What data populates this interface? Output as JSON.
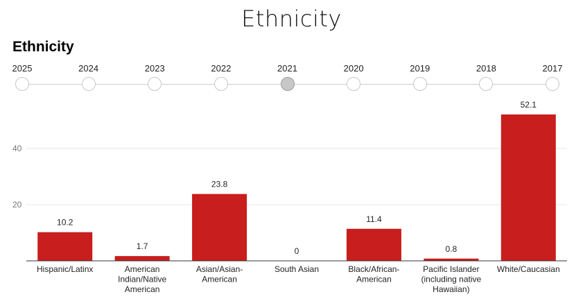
{
  "page": {
    "title": "Ethnicity"
  },
  "timeline": {
    "years": [
      "2025",
      "2024",
      "2023",
      "2022",
      "2021",
      "2020",
      "2019",
      "2018",
      "2017"
    ],
    "selected": "2021"
  },
  "colors": {
    "bar": "#c81e1e",
    "grid": "#e6e6e6",
    "axis": "#333333",
    "selected_dot": "#c8c8c8"
  },
  "chart_data": {
    "type": "bar",
    "title": "Ethnicity",
    "xlabel": "",
    "ylabel": "",
    "categories": [
      [
        "Hispanic/Latinx"
      ],
      [
        "American",
        "Indian/Native",
        "American"
      ],
      [
        "Asian/Asian-",
        "American"
      ],
      [
        "South Asian"
      ],
      [
        "Black/African-",
        "American"
      ],
      [
        "Pacific Islander",
        "(including native",
        "Hawaiian)"
      ],
      [
        "White/Caucasian"
      ]
    ],
    "values": [
      10.2,
      1.7,
      23.8,
      0,
      11.4,
      0.8,
      52.1
    ],
    "data_labels": [
      "10.2",
      "1.7",
      "23.8",
      "0",
      "11.4",
      "0.8",
      "52.1"
    ],
    "yticks": [
      20,
      40
    ],
    "ylim": [
      0,
      56
    ],
    "grid": true,
    "legend": "none"
  }
}
